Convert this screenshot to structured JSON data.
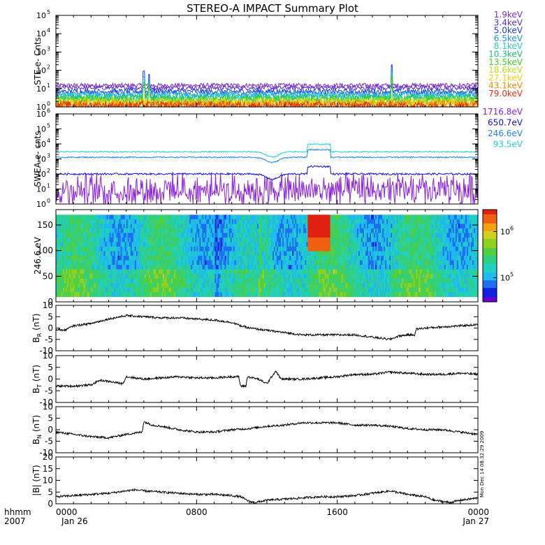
{
  "chart_data": {
    "type": "line",
    "title": "STEREO-A IMPACT Summary Plot",
    "time_axis": {
      "corner_labels": [
        "hhmm",
        "2007"
      ],
      "ticks": [
        {
          "time": "0000",
          "date": "Jan 26",
          "hour": 0
        },
        {
          "time": "0800",
          "date": "",
          "hour": 8
        },
        {
          "time": "1600",
          "date": "",
          "hour": 16
        },
        {
          "time": "0000",
          "date": "Jan 27",
          "hour": 24
        }
      ],
      "range_hours": [
        0,
        24
      ]
    },
    "side_stamp": "Mon Dec 14 08:32:29 2009",
    "panels": [
      {
        "id": "ste",
        "ylabel": "STE e- Cnts",
        "scale": "log",
        "ylim": [
          1,
          100000
        ],
        "tick_exponents": [
          0,
          1,
          2,
          3,
          4,
          5
        ],
        "series": [
          {
            "name": "1.9keV",
            "color": "#7b2fd0",
            "level": 15,
            "noise": 0.12
          },
          {
            "name": "3.4keV",
            "color": "#5a2fd0",
            "level": 11,
            "noise": 0.12
          },
          {
            "name": "5.0keV",
            "color": "#2040e0",
            "level": 7,
            "noise": 0.14
          },
          {
            "name": "6.5keV",
            "color": "#1e8ff0",
            "level": 5,
            "noise": 0.16
          },
          {
            "name": "8.1keV",
            "color": "#28c8c8",
            "level": 3.8,
            "noise": 0.2
          },
          {
            "name": "10.3keV",
            "color": "#20c070",
            "level": 3,
            "noise": 0.22
          },
          {
            "name": "13.5keV",
            "color": "#40d020",
            "level": 2.4,
            "noise": 0.25
          },
          {
            "name": "18.6keV",
            "color": "#b8e020",
            "level": 1.9,
            "noise": 0.25
          },
          {
            "name": "27.1keV",
            "color": "#f0d000",
            "level": 1.6,
            "noise": 0.25
          },
          {
            "name": "43.1keV",
            "color": "#f08a00",
            "level": 1.35,
            "noise": 0.25
          },
          {
            "name": "79.0keV",
            "color": "#e03010",
            "level": 1.15,
            "noise": 0.25
          }
        ],
        "spikes": [
          {
            "hour": 5.0,
            "value": 90
          },
          {
            "hour": 5.3,
            "value": 60
          },
          {
            "hour": 19.1,
            "value": 200
          }
        ]
      },
      {
        "id": "swea",
        "ylabel": "SWEA e- cnts",
        "scale": "log",
        "ylim": [
          1,
          1000000
        ],
        "tick_exponents": [
          0,
          1,
          2,
          3,
          4,
          5,
          6
        ],
        "series": [
          {
            "name": "1716.8eV",
            "color": "#8a20e0",
            "level": 8,
            "noise": 0.5
          },
          {
            "name": "650.7eV",
            "color": "#1010d0",
            "level": 100,
            "noise": 0.06
          },
          {
            "name": "246.6eV",
            "color": "#2080f0",
            "level": 1300,
            "noise": 0.04
          },
          {
            "name": "93.5eV",
            "color": "#20d0d0",
            "level": 3000,
            "noise": 0.04
          }
        ]
      },
      {
        "id": "pad",
        "ylabel": "246.6 eV",
        "type": "heatmap",
        "ylim": [
          0,
          180
        ],
        "ticks": [
          0,
          50,
          100,
          150
        ],
        "colorbar": {
          "scale": "log",
          "range": [
            30000,
            3000000
          ],
          "tick_exponents": [
            5,
            6
          ]
        }
      },
      {
        "id": "br",
        "ylabel": "B",
        "ylabel_sub": "R",
        "ylabel_unit": "(nT)",
        "ylim": [
          -10,
          10
        ],
        "ticks": [
          -10,
          -5,
          0,
          5,
          10
        ],
        "knots": [
          [
            0,
            -0.5
          ],
          [
            0.5,
            -1
          ],
          [
            1,
            1
          ],
          [
            2,
            2
          ],
          [
            3,
            4
          ],
          [
            4,
            5.5
          ],
          [
            5,
            5
          ],
          [
            6,
            4.5
          ],
          [
            7,
            4.5
          ],
          [
            8,
            4
          ],
          [
            9,
            3.5
          ],
          [
            10,
            2.5
          ],
          [
            10.5,
            1
          ],
          [
            11,
            0
          ],
          [
            12,
            -1
          ],
          [
            13,
            -2
          ],
          [
            14,
            -3
          ],
          [
            15,
            -3
          ],
          [
            16,
            -3
          ],
          [
            17,
            -3
          ],
          [
            18,
            -4
          ],
          [
            18.5,
            -4.5
          ],
          [
            19,
            -5
          ],
          [
            19.5,
            -3.5
          ],
          [
            20,
            -3
          ],
          [
            20.4,
            -3
          ],
          [
            20.5,
            -0.5
          ],
          [
            21,
            0
          ],
          [
            22,
            0.5
          ],
          [
            23,
            1
          ],
          [
            24,
            1.5
          ]
        ]
      },
      {
        "id": "bt",
        "ylabel": "B",
        "ylabel_sub": "T",
        "ylabel_unit": "(nT)",
        "ylim": [
          -10,
          10
        ],
        "ticks": [
          -10,
          -5,
          0,
          5,
          10
        ],
        "knots": [
          [
            0,
            -3
          ],
          [
            1,
            -3
          ],
          [
            2,
            -2.5
          ],
          [
            2.5,
            -0.5
          ],
          [
            3,
            -1
          ],
          [
            3.8,
            -2
          ],
          [
            4,
            1
          ],
          [
            4.5,
            0.5
          ],
          [
            5,
            0
          ],
          [
            6,
            0.5
          ],
          [
            7,
            1
          ],
          [
            8,
            0.5
          ],
          [
            9,
            0.5
          ],
          [
            10,
            1
          ],
          [
            10.4,
            1
          ],
          [
            10.5,
            -3
          ],
          [
            10.8,
            -3
          ],
          [
            10.9,
            1
          ],
          [
            11.5,
            0
          ],
          [
            12,
            -2
          ],
          [
            12.5,
            3.5
          ],
          [
            12.8,
            0
          ],
          [
            14,
            0
          ],
          [
            15,
            0.5
          ],
          [
            16,
            1
          ],
          [
            17,
            2
          ],
          [
            18,
            2
          ],
          [
            19,
            3
          ],
          [
            20,
            2.5
          ],
          [
            21,
            2
          ],
          [
            22,
            2
          ],
          [
            23,
            2.5
          ],
          [
            24,
            2
          ]
        ]
      },
      {
        "id": "bn",
        "ylabel": "B",
        "ylabel_sub": "N",
        "ylabel_unit": "(nT)",
        "ylim": [
          -10,
          10
        ],
        "ticks": [
          -10,
          -5,
          0,
          5,
          10
        ],
        "knots": [
          [
            0,
            -1
          ],
          [
            1,
            -2
          ],
          [
            2,
            -3
          ],
          [
            3,
            -3.5
          ],
          [
            4,
            -2
          ],
          [
            4.9,
            -1
          ],
          [
            5,
            3.5
          ],
          [
            5.5,
            2
          ],
          [
            6,
            1.5
          ],
          [
            7,
            0
          ],
          [
            8,
            -1
          ],
          [
            9,
            -1
          ],
          [
            10,
            0
          ],
          [
            11,
            0.5
          ],
          [
            12,
            1.5
          ],
          [
            13,
            2
          ],
          [
            14,
            3
          ],
          [
            15,
            3
          ],
          [
            16,
            3
          ],
          [
            17,
            2
          ],
          [
            18,
            2
          ],
          [
            19,
            1.5
          ],
          [
            20,
            0.5
          ],
          [
            21,
            0
          ],
          [
            22,
            0
          ],
          [
            23,
            -1
          ],
          [
            24,
            -2
          ]
        ]
      },
      {
        "id": "bmag",
        "ylabel": "|B| (nT)",
        "ylim": [
          0,
          20
        ],
        "ticks": [
          0,
          5,
          10,
          15,
          20
        ],
        "knots": [
          [
            0,
            3
          ],
          [
            1,
            3.5
          ],
          [
            2,
            4
          ],
          [
            3,
            4.5
          ],
          [
            4,
            5.5
          ],
          [
            4.5,
            6
          ],
          [
            5,
            5.5
          ],
          [
            6,
            5
          ],
          [
            7,
            4.5
          ],
          [
            8,
            4
          ],
          [
            9,
            4
          ],
          [
            10,
            3.5
          ],
          [
            10.5,
            3
          ],
          [
            11,
            1
          ],
          [
            11.3,
            0.5
          ],
          [
            12,
            1.5
          ],
          [
            13,
            2
          ],
          [
            14,
            2.5
          ],
          [
            15,
            3
          ],
          [
            16,
            3
          ],
          [
            17,
            3.5
          ],
          [
            18,
            4.5
          ],
          [
            18.5,
            5
          ],
          [
            19,
            5.5
          ],
          [
            20,
            4
          ],
          [
            21,
            3
          ],
          [
            21.5,
            1.5
          ],
          [
            22,
            1
          ],
          [
            22.4,
            0.5
          ],
          [
            23,
            1.5
          ],
          [
            24,
            2.5
          ]
        ]
      }
    ]
  }
}
